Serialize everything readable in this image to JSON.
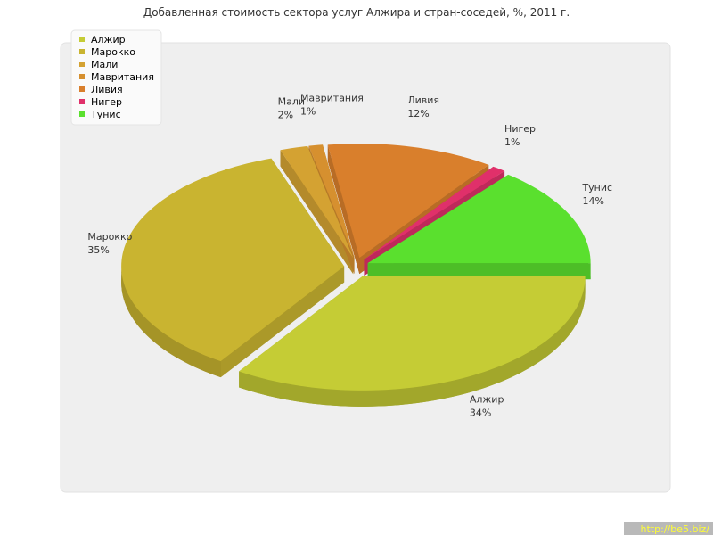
{
  "chart_data": {
    "type": "pie3d",
    "title": "Добавленная стоимость сектора услуг Алжира и стран-соседей, %, 2011 г.",
    "categories": [
      "Алжир",
      "Марокко",
      "Мали",
      "Мавритания",
      "Ливия",
      "Нигер",
      "Тунис"
    ],
    "values": [
      34,
      35,
      2,
      1,
      12,
      1,
      14
    ],
    "value_labels": [
      "34%",
      "35%",
      "2%",
      "1%",
      "12%",
      "1%",
      "14%"
    ],
    "colors": [
      "#c5cc35",
      "#c9b430",
      "#d4a232",
      "#d6902f",
      "#d97f2c",
      "#e0306a",
      "#5ae02e"
    ],
    "legend": "top-left"
  },
  "watermark": "http://be5.biz/"
}
